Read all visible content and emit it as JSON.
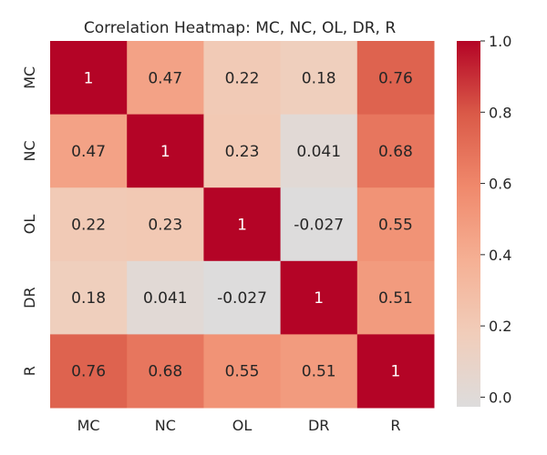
{
  "chart_data": {
    "type": "heatmap",
    "title": "Correlation Heatmap: MC, NC, OL, DR, R",
    "rows": [
      "MC",
      "NC",
      "OL",
      "DR",
      "R"
    ],
    "columns": [
      "MC",
      "NC",
      "OL",
      "DR",
      "R"
    ],
    "values": [
      [
        1,
        0.47,
        0.22,
        0.18,
        0.76
      ],
      [
        0.47,
        1,
        0.23,
        0.041,
        0.68
      ],
      [
        0.22,
        0.23,
        1,
        -0.027,
        0.55
      ],
      [
        0.18,
        0.041,
        -0.027,
        1,
        0.51
      ],
      [
        0.76,
        0.68,
        0.55,
        0.51,
        1
      ]
    ],
    "cell_labels": [
      [
        "1",
        "0.47",
        "0.22",
        "0.18",
        "0.76"
      ],
      [
        "0.47",
        "1",
        "0.23",
        "0.041",
        "0.68"
      ],
      [
        "0.22",
        "0.23",
        "1",
        "-0.027",
        "0.55"
      ],
      [
        "0.18",
        "0.041",
        "-0.027",
        "1",
        "0.51"
      ],
      [
        "0.76",
        "0.68",
        "0.55",
        "0.51",
        "1"
      ]
    ],
    "colorbar": {
      "range": [
        -0.027,
        1.0
      ],
      "ticks": [
        0.0,
        0.2,
        0.4,
        0.6,
        0.8,
        1.0
      ],
      "tick_labels": [
        "0.0",
        "0.2",
        "0.4",
        "0.6",
        "0.8",
        "1.0"
      ],
      "colormap": "coolwarm-centered",
      "colors": {
        "low": "#dddcdc",
        "mid": "#f7b89c",
        "high": "#b40426"
      }
    },
    "legend_placement": "right",
    "grid": false
  }
}
